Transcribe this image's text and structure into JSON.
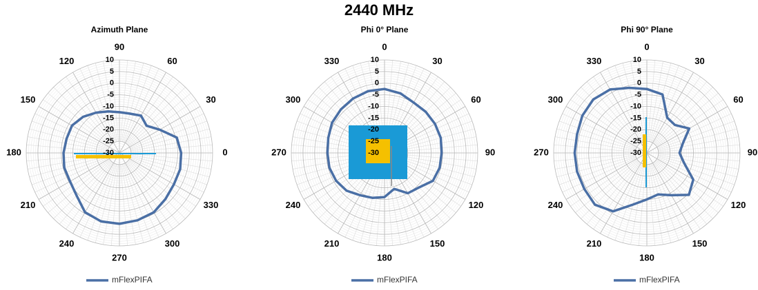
{
  "title": "2440 MHz",
  "chart_data": [
    {
      "type": "polar",
      "title": "Azimuth Plane",
      "rlim": [
        -30,
        10
      ],
      "rticks": [
        10,
        5,
        0,
        -5,
        -10,
        -15,
        -20,
        -25,
        -30
      ],
      "angle_ticks": [
        0,
        30,
        60,
        90,
        120,
        150,
        180,
        210,
        240,
        270,
        300,
        330
      ],
      "zero": "right",
      "direction": "ccw",
      "theta": [
        0,
        15,
        30,
        45,
        60,
        75,
        90,
        105,
        120,
        135,
        150,
        165,
        180,
        195,
        210,
        225,
        240,
        255,
        270,
        285,
        300,
        315,
        330,
        345
      ],
      "series": [
        {
          "name": "mFlexPIFA",
          "color": "#4a6fa5",
          "values": [
            -3.5,
            -4.5,
            -10,
            -13.5,
            -11.5,
            -12.5,
            -12.5,
            -11.5,
            -10,
            -8,
            -6.5,
            -6.5,
            -6,
            -5.5,
            -5.5,
            -4,
            -0.5,
            0.5,
            0.5,
            0,
            -0.5,
            -2,
            -3,
            -3
          ]
        }
      ]
    },
    {
      "type": "polar",
      "title": "Phi 0° Plane",
      "rlim": [
        -30,
        10
      ],
      "rticks": [
        10,
        5,
        0,
        -5,
        -10,
        -15,
        -20,
        -25,
        -30
      ],
      "angle_ticks": [
        0,
        30,
        60,
        90,
        120,
        150,
        180,
        210,
        240,
        270,
        300,
        330
      ],
      "zero": "top",
      "direction": "cw",
      "theta": [
        0,
        15,
        30,
        45,
        60,
        75,
        90,
        105,
        120,
        135,
        150,
        165,
        180,
        195,
        210,
        225,
        240,
        255,
        270,
        285,
        300,
        315,
        330,
        345
      ],
      "series": [
        {
          "name": "mFlexPIFA",
          "color": "#4a6fa5",
          "values": [
            -2.5,
            -3.5,
            -5,
            -5,
            -5,
            -5,
            -5.5,
            -5.5,
            -6,
            -9,
            -10,
            -14,
            -11,
            -10,
            -9,
            -7,
            -6,
            -5.5,
            -5.5,
            -5,
            -4,
            -3.5,
            -3,
            -2.5
          ]
        }
      ]
    },
    {
      "type": "polar",
      "title": "Phi 90° Plane",
      "rlim": [
        -30,
        10
      ],
      "rticks": [
        10,
        5,
        0,
        -5,
        -10,
        -15,
        -20,
        -25,
        -30
      ],
      "angle_ticks": [
        0,
        30,
        60,
        90,
        120,
        150,
        180,
        210,
        240,
        270,
        300,
        330
      ],
      "zero": "top",
      "direction": "cw",
      "theta": [
        0,
        15,
        30,
        45,
        60,
        75,
        90,
        105,
        120,
        135,
        150,
        165,
        180,
        195,
        210,
        225,
        240,
        255,
        270,
        285,
        300,
        315,
        330,
        345
      ],
      "series": [
        {
          "name": "mFlexPIFA",
          "color": "#4a6fa5",
          "values": [
            -2.5,
            -4,
            -12.5,
            -13,
            -9,
            -14,
            -16,
            -13.5,
            -7,
            -4.5,
            -9,
            -11.5,
            -10,
            -7,
            -1,
            1.5,
            1,
            1,
            1,
            1,
            2,
            2.5,
            1.5,
            -1
          ]
        }
      ]
    }
  ]
}
